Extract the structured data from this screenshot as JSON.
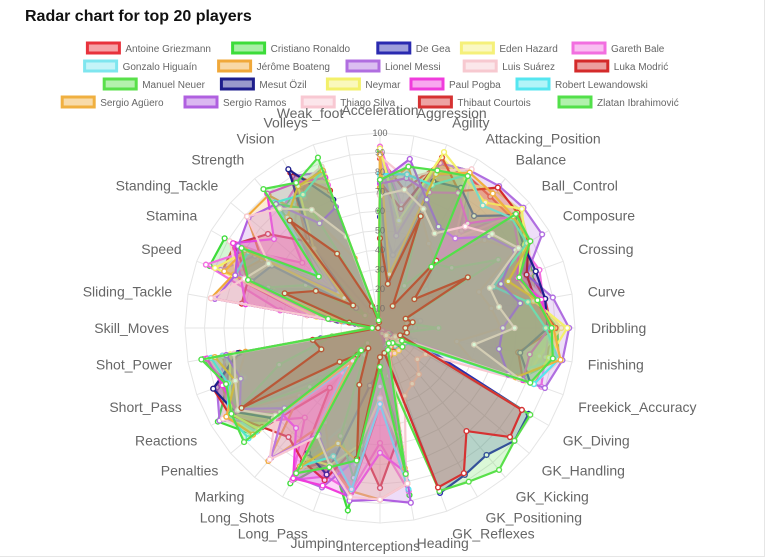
{
  "title": "Radar chart for top 20 players",
  "chart_data": {
    "type": "radar",
    "title": "Radar chart for top 20 players",
    "scale": {
      "min": 0,
      "max": 100,
      "step": 10,
      "tick_label_shown": "100"
    },
    "legend_position": "top",
    "axes": [
      "Acceleration",
      "Aggression",
      "Agility",
      "Attacking_Position",
      "Balance",
      "Ball_Control",
      "Composure",
      "Crossing",
      "Curve",
      "Dribbling",
      "Finishing",
      "Freekick_Accuracy",
      "GK_Diving",
      "GK_Handling",
      "GK_Kicking",
      "GK_Positioning",
      "GK_Reflexes",
      "Heading",
      "Interceptions",
      "Jumping",
      "Long_Pass",
      "Long_Shots",
      "Marking",
      "Penalties",
      "Reactions",
      "Short_Pass",
      "Shot_Power",
      "Skill_Moves",
      "Sliding_Tackle",
      "Speed",
      "Stamina",
      "Standing_Tackle",
      "Strength",
      "Vision",
      "Volleys",
      "Weak_foot"
    ],
    "series": [
      {
        "name": "Antoine Griezmann",
        "color": "#e8323c",
        "values": [
          87,
          72,
          90,
          90,
          88,
          88,
          86,
          82,
          86,
          88,
          87,
          84,
          10,
          12,
          8,
          12,
          10,
          75,
          40,
          86,
          72,
          84,
          40,
          82,
          88,
          82,
          82,
          4,
          38,
          86,
          86,
          42,
          68,
          84,
          86,
          3
        ]
      },
      {
        "name": "Cristiano Ronaldo",
        "color": "#3ddc3a",
        "values": [
          91,
          63,
          90,
          93,
          63,
          93,
          86,
          83,
          81,
          91,
          93,
          76,
          7,
          11,
          15,
          14,
          11,
          87,
          29,
          95,
          72,
          92,
          22,
          85,
          96,
          83,
          92,
          5,
          23,
          93,
          92,
          31,
          80,
          81,
          88,
          4
        ]
      },
      {
        "name": "De Gea",
        "color": "#2a2ab0",
        "values": [
          57,
          38,
          60,
          12,
          43,
          31,
          30,
          17,
          21,
          18,
          13,
          19,
          88,
          90,
          85,
          87,
          90,
          12,
          30,
          67,
          32,
          12,
          14,
          40,
          88,
          32,
          31,
          1,
          13,
          58,
          40,
          21,
          64,
          10,
          10,
          3
        ]
      },
      {
        "name": "Eden Hazard",
        "color": "#f5f07a",
        "values": [
          93,
          54,
          93,
          86,
          92,
          94,
          88,
          82,
          82,
          93,
          83,
          79,
          11,
          12,
          6,
          8,
          8,
          57,
          41,
          61,
          78,
          82,
          25,
          86,
          89,
          86,
          76,
          4,
          27,
          86,
          79,
          32,
          64,
          86,
          80,
          4
        ]
      },
      {
        "name": "Gareth Bale",
        "color": "#f26fe0",
        "values": [
          93,
          64,
          84,
          88,
          65,
          87,
          84,
          87,
          85,
          87,
          86,
          88,
          15,
          15,
          11,
          5,
          6,
          85,
          59,
          85,
          81,
          90,
          60,
          74,
          89,
          84,
          91,
          4,
          52,
          95,
          79,
          52,
          79,
          85,
          78,
          3
        ]
      },
      {
        "name": "Gonzalo Higuaín",
        "color": "#7fe6ef",
        "values": [
          78,
          56,
          82,
          90,
          70,
          86,
          86,
          67,
          80,
          84,
          92,
          70,
          5,
          12,
          7,
          5,
          9,
          80,
          20,
          71,
          53,
          79,
          20,
          83,
          89,
          74,
          82,
          3,
          15,
          78,
          72,
          19,
          80,
          77,
          86,
          4
        ]
      },
      {
        "name": "Jérôme Boateng",
        "color": "#f0a83a",
        "values": [
          72,
          84,
          62,
          50,
          44,
          70,
          80,
          54,
          58,
          62,
          40,
          51,
          15,
          5,
          10,
          9,
          15,
          81,
          88,
          85,
          75,
          56,
          89,
          54,
          84,
          78,
          70,
          2,
          88,
          80,
          70,
          89,
          89,
          62,
          38,
          4
        ]
      },
      {
        "name": "Lionel Messi",
        "color": "#b06ee0",
        "values": [
          92,
          48,
          90,
          93,
          95,
          96,
          96,
          80,
          90,
          97,
          95,
          90,
          6,
          11,
          15,
          14,
          8,
          71,
          22,
          68,
          87,
          88,
          13,
          74,
          95,
          89,
          80,
          4,
          26,
          87,
          74,
          28,
          59,
          90,
          85,
          4
        ]
      },
      {
        "name": "Luis Suárez",
        "color": "#f7c9d0",
        "values": [
          88,
          78,
          86,
          94,
          60,
          91,
          83,
          77,
          86,
          86,
          94,
          84,
          27,
          25,
          31,
          33,
          37,
          77,
          41,
          69,
          64,
          86,
          30,
          85,
          93,
          83,
          87,
          4,
          38,
          78,
          89,
          45,
          76,
          84,
          88,
          4
        ]
      },
      {
        "name": "Luka Modrić",
        "color": "#d42a2a",
        "values": [
          75,
          62,
          93,
          81,
          94,
          92,
          88,
          80,
          81,
          90,
          72,
          78,
          13,
          9,
          7,
          14,
          9,
          56,
          82,
          60,
          83,
          79,
          73,
          79,
          89,
          91,
          73,
          4,
          72,
          72,
          86,
          75,
          58,
          92,
          75,
          4
        ]
      },
      {
        "name": "Manuel Neuer",
        "color": "#59e04a",
        "values": [
          60,
          29,
          56,
          25,
          43,
          48,
          70,
          15,
          14,
          30,
          13,
          11,
          89,
          90,
          95,
          91,
          89,
          25,
          30,
          78,
          59,
          16,
          10,
          47,
          85,
          55,
          25,
          1,
          11,
          61,
          44,
          10,
          83,
          70,
          11,
          4
        ]
      },
      {
        "name": "Mesut Özil",
        "color": "#1e1e8c",
        "values": [
          76,
          24,
          80,
          83,
          75,
          90,
          85,
          85,
          86,
          86,
          73,
          82,
          6,
          14,
          10,
          6,
          14,
          54,
          22,
          30,
          80,
          74,
          24,
          72,
          86,
          91,
          74,
          4,
          22,
          70,
          64,
          16,
          53,
          94,
          70,
          3
        ]
      },
      {
        "name": "Neymar",
        "color": "#f3f06a",
        "values": [
          92,
          56,
          96,
          88,
          84,
          95,
          86,
          75,
          80,
          96,
          88,
          83,
          9,
          9,
          15,
          15,
          11,
          62,
          36,
          61,
          75,
          77,
          21,
          81,
          88,
          82,
          78,
          5,
          33,
          90,
          79,
          24,
          53,
          84,
          83,
          5
        ]
      },
      {
        "name": "Paul Pogba",
        "color": "#f03cdc",
        "values": [
          74,
          78,
          74,
          80,
          70,
          89,
          82,
          75,
          84,
          87,
          78,
          78,
          5,
          6,
          2,
          4,
          3,
          75,
          64,
          88,
          86,
          89,
          67,
          67,
          85,
          86,
          90,
          4,
          70,
          76,
          87,
          71,
          90,
          86,
          82,
          4
        ]
      },
      {
        "name": "Robert Lewandowski",
        "color": "#55e6f0",
        "values": [
          79,
          80,
          78,
          91,
          82,
          88,
          87,
          62,
          77,
          85,
          93,
          84,
          15,
          6,
          12,
          8,
          10,
          84,
          39,
          84,
          70,
          82,
          25,
          88,
          90,
          83,
          88,
          4,
          19,
          79,
          78,
          42,
          84,
          79,
          86,
          4
        ]
      },
      {
        "name": "Sergio Agüero",
        "color": "#f0b040",
        "values": [
          89,
          28,
          84,
          92,
          90,
          89,
          89,
          70,
          82,
          89,
          94,
          74,
          13,
          15,
          6,
          11,
          14,
          73,
          20,
          69,
          63,
          82,
          22,
          85,
          91,
          79,
          86,
          4,
          20,
          85,
          80,
          24,
          74,
          84,
          86,
          4
        ]
      },
      {
        "name": "Sergio Ramos",
        "color": "#b060e0",
        "values": [
          75,
          88,
          70,
          60,
          60,
          73,
          80,
          66,
          73,
          63,
          62,
          70,
          11,
          8,
          9,
          7,
          11,
          91,
          88,
          90,
          75,
          63,
          87,
          64,
          83,
          76,
          80,
          3,
          86,
          79,
          84,
          88,
          83,
          62,
          66,
          3
        ]
      },
      {
        "name": "Thiago Silva",
        "color": "#f8c8d2",
        "values": [
          68,
          72,
          65,
          56,
          68,
          75,
          82,
          60,
          62,
          69,
          49,
          76,
          9,
          12,
          5,
          9,
          14,
          81,
          88,
          88,
          75,
          64,
          88,
          70,
          84,
          79,
          76,
          2,
          88,
          74,
          66,
          89,
          80,
          70,
          50,
          3
        ]
      },
      {
        "name": "Thibaut Courtois",
        "color": "#d63232",
        "values": [
          46,
          23,
          61,
          13,
          45,
          23,
          52,
          14,
          17,
          13,
          14,
          11,
          84,
          87,
          69,
          86,
          87,
          13,
          15,
          68,
          31,
          12,
          18,
          27,
          82,
          32,
          35,
          1,
          16,
          52,
          38,
          18,
          72,
          44,
          12,
          3
        ]
      },
      {
        "name": "Zlatan Ibrahimović",
        "color": "#52e04a",
        "values": [
          76,
          84,
          86,
          90,
          41,
          91,
          89,
          76,
          82,
          88,
          90,
          82,
          13,
          15,
          10,
          9,
          12,
          76,
          20,
          69,
          76,
          86,
          15,
          91,
          88,
          84,
          93,
          4,
          27,
          72,
          82,
          41,
          93,
          86,
          93,
          4
        ]
      }
    ]
  }
}
